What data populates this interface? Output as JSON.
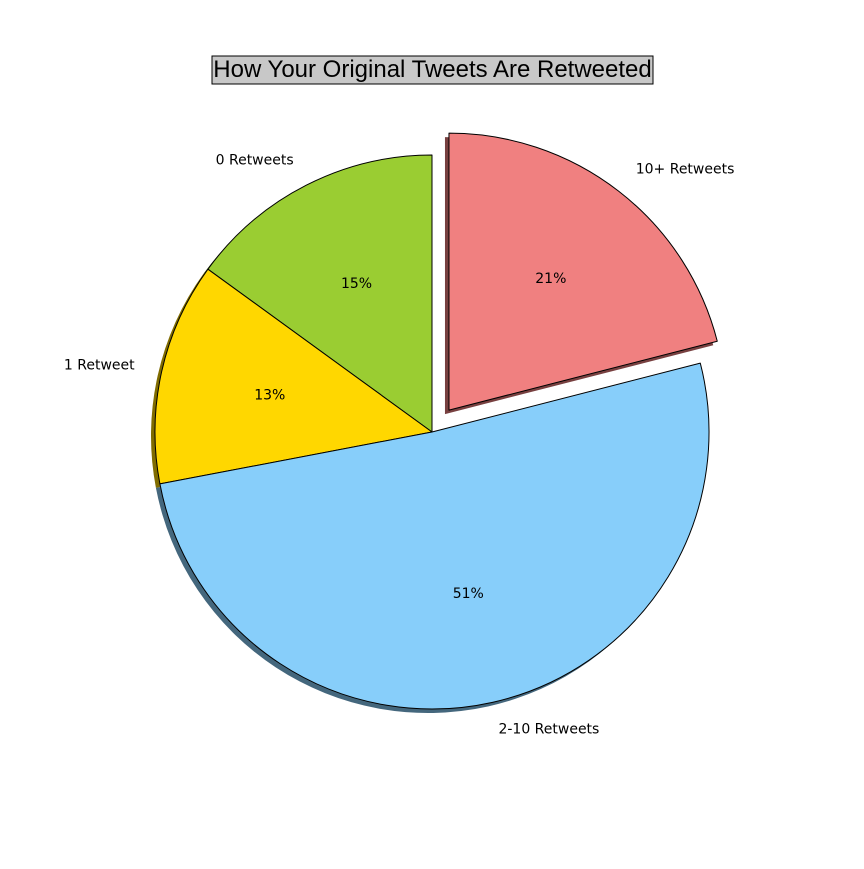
{
  "chart_data": {
    "type": "pie",
    "title": "How Your Original Tweets Are Retweeted",
    "title_box_color": "#c8c8c8",
    "start_angle_deg": 90,
    "counterclockwise": true,
    "shadow": true,
    "slices": [
      {
        "label": "0 Retweets",
        "value": 15,
        "pct_label": "15%",
        "color": "#9acd32",
        "explode": false
      },
      {
        "label": "1 Retweet",
        "value": 13,
        "pct_label": "13%",
        "color": "#ffd700",
        "explode": false
      },
      {
        "label": "2-10 Retweets",
        "value": 51,
        "pct_label": "51%",
        "color": "#87cefa",
        "explode": false
      },
      {
        "label": "10+ Retweets",
        "value": 21,
        "pct_label": "21%",
        "color": "#f08080",
        "explode": true
      }
    ]
  }
}
